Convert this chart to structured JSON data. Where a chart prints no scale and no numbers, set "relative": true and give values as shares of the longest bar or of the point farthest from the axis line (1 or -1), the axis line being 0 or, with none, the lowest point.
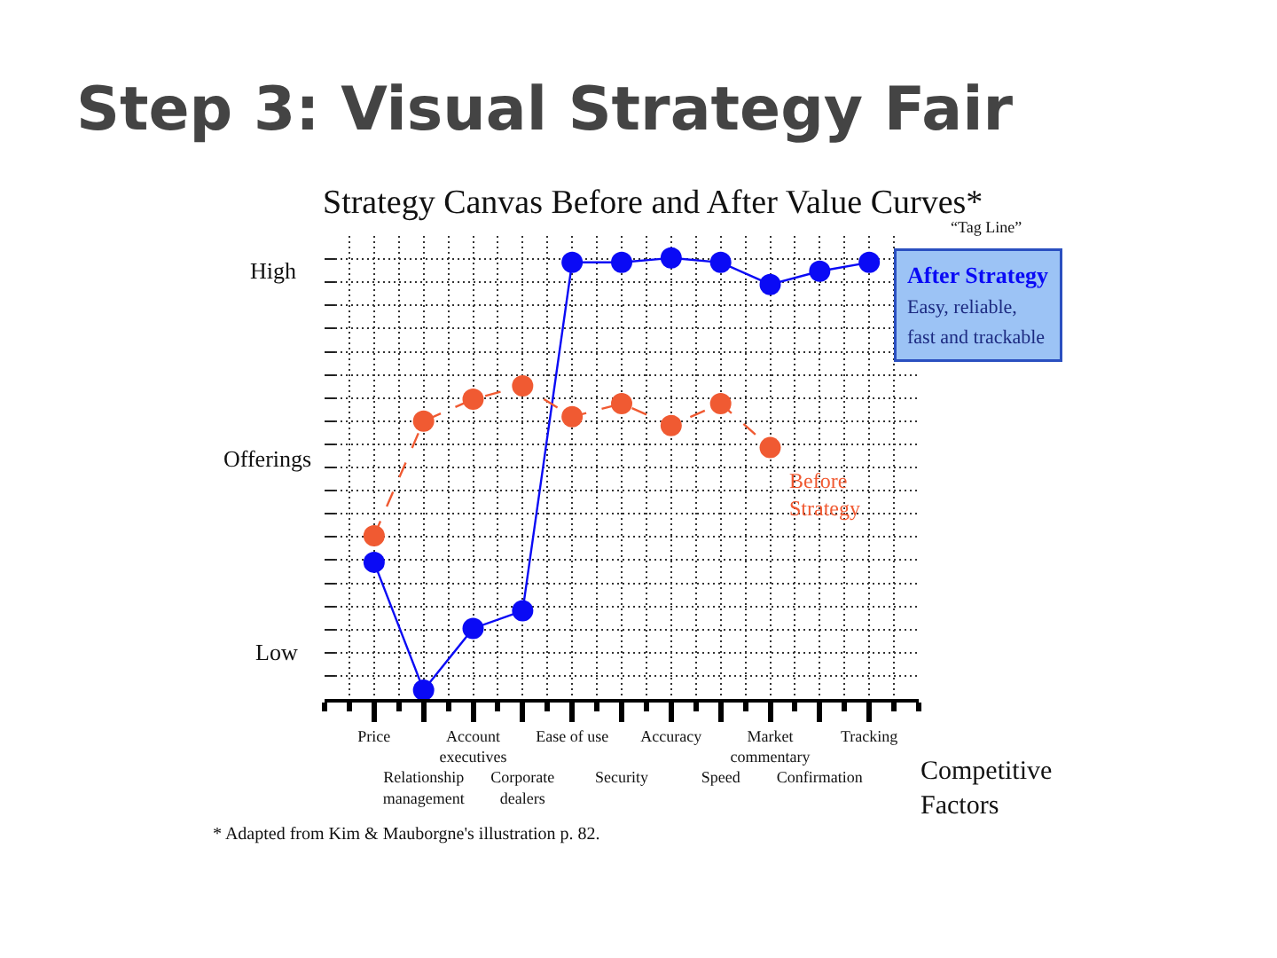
{
  "chart_data": {
    "type": "line",
    "title": "Step 3: Visual Strategy Fair",
    "subtitle": "Strategy Canvas Before and After Value Curves*",
    "xlabel": "Competitive Factors",
    "ylabel": "Offerings",
    "relative": true,
    "grid": true,
    "marker": "circle",
    "categories": [
      "Price",
      "Relationship management",
      "Account executives",
      "Corporate dealers",
      "Ease of use",
      "Security",
      "Accuracy",
      "Speed",
      "Market commentary",
      "Confirmation",
      "Tracking"
    ],
    "series": [
      {
        "name": "After Strategy",
        "color": "#0a0af5",
        "line_style": "solid",
        "values": [
          0.31,
          0.02,
          0.16,
          0.2,
          0.99,
          0.99,
          1,
          0.99,
          0.94,
          0.97,
          0.99
        ]
      },
      {
        "name": "Before Strategy",
        "color": "#f05a32",
        "line_style": "dashed",
        "values": [
          0.37,
          0.63,
          0.68,
          0.71,
          0.64,
          0.67,
          0.62,
          0.67,
          0.57,
          null,
          null
        ]
      }
    ],
    "annotations": [
      "High",
      "Low",
      "“Tag Line”",
      "Easy, reliable, fast and trackable",
      "* Adapted from Kim & Mauborgne's illustration p. 82."
    ]
  }
}
